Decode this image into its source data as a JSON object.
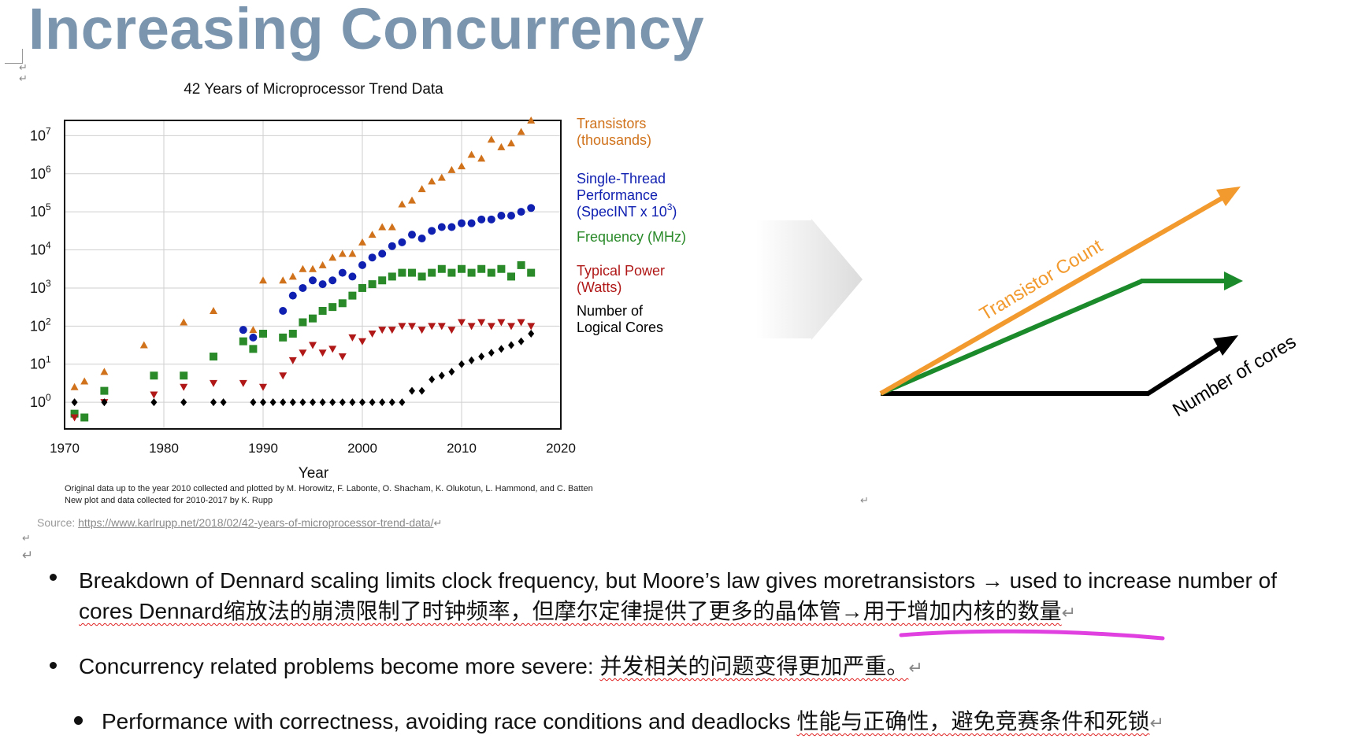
{
  "slide": {
    "title": "Increasing Concurrency",
    "para_mark": "↵"
  },
  "chart_data": {
    "type": "scatter",
    "title": "42 Years of Microprocessor Trend Data",
    "xlabel": "Year",
    "ylabel": "",
    "x_ticks": [
      "1970",
      "1980",
      "1990",
      "2000",
      "2010",
      "2020"
    ],
    "y_ticks": [
      "10^0",
      "10^1",
      "10^2",
      "10^3",
      "10^4",
      "10^5",
      "10^6",
      "10^7"
    ],
    "xlim": [
      1970,
      2020
    ],
    "ylim_log10": [
      -0.7,
      7.4
    ],
    "y_scale": "log",
    "grid": true,
    "legend_placement": "right",
    "series": [
      {
        "name": "Transistors (thousands)",
        "legend_lines": [
          "Transistors",
          "(thousands)"
        ],
        "color": "#d0721b",
        "marker": "triangle-up",
        "points": [
          [
            1971,
            0.4
          ],
          [
            1972,
            0.55
          ],
          [
            1974,
            0.8
          ],
          [
            1978,
            1.5
          ],
          [
            1982,
            2.1
          ],
          [
            1985,
            2.4
          ],
          [
            1989,
            1.9
          ],
          [
            1990,
            3.2
          ],
          [
            1992,
            3.2
          ],
          [
            1993,
            3.3
          ],
          [
            1994,
            3.5
          ],
          [
            1995,
            3.5
          ],
          [
            1996,
            3.6
          ],
          [
            1997,
            3.8
          ],
          [
            1998,
            3.9
          ],
          [
            1999,
            3.9
          ],
          [
            2000,
            4.2
          ],
          [
            2001,
            4.4
          ],
          [
            2002,
            4.6
          ],
          [
            2003,
            4.6
          ],
          [
            2004,
            5.2
          ],
          [
            2005,
            5.3
          ],
          [
            2006,
            5.6
          ],
          [
            2007,
            5.8
          ],
          [
            2008,
            5.9
          ],
          [
            2009,
            6.1
          ],
          [
            2010,
            6.2
          ],
          [
            2011,
            6.5
          ],
          [
            2012,
            6.4
          ],
          [
            2013,
            6.9
          ],
          [
            2014,
            6.7
          ],
          [
            2015,
            6.8
          ],
          [
            2016,
            7.1
          ],
          [
            2017,
            7.4
          ]
        ]
      },
      {
        "name": "Single-Thread Performance (SpecINT x 10^3)",
        "legend_lines": [
          "Single-Thread",
          "Performance",
          "(SpecINT x 10^3)"
        ],
        "color": "#1020b0",
        "marker": "circle",
        "points": [
          [
            1988,
            1.9
          ],
          [
            1989,
            1.7
          ],
          [
            1990,
            1.8
          ],
          [
            1992,
            2.4
          ],
          [
            1993,
            2.8
          ],
          [
            1994,
            3.0
          ],
          [
            1995,
            3.2
          ],
          [
            1996,
            3.1
          ],
          [
            1997,
            3.2
          ],
          [
            1998,
            3.4
          ],
          [
            1999,
            3.3
          ],
          [
            2000,
            3.6
          ],
          [
            2001,
            3.8
          ],
          [
            2002,
            3.9
          ],
          [
            2003,
            4.1
          ],
          [
            2004,
            4.2
          ],
          [
            2005,
            4.4
          ],
          [
            2006,
            4.3
          ],
          [
            2007,
            4.5
          ],
          [
            2008,
            4.6
          ],
          [
            2009,
            4.6
          ],
          [
            2010,
            4.7
          ],
          [
            2011,
            4.7
          ],
          [
            2012,
            4.8
          ],
          [
            2013,
            4.8
          ],
          [
            2014,
            4.9
          ],
          [
            2015,
            4.9
          ],
          [
            2016,
            5.0
          ],
          [
            2017,
            5.1
          ]
        ]
      },
      {
        "name": "Frequency (MHz)",
        "legend_lines": [
          "Frequency (MHz)"
        ],
        "color": "#2a8a2a",
        "marker": "square",
        "points": [
          [
            1971,
            -0.3
          ],
          [
            1972,
            -0.4
          ],
          [
            1974,
            0.3
          ],
          [
            1979,
            0.7
          ],
          [
            1982,
            0.7
          ],
          [
            1985,
            1.2
          ],
          [
            1988,
            1.6
          ],
          [
            1989,
            1.4
          ],
          [
            1990,
            1.8
          ],
          [
            1992,
            1.7
          ],
          [
            1993,
            1.8
          ],
          [
            1994,
            2.1
          ],
          [
            1995,
            2.2
          ],
          [
            1996,
            2.4
          ],
          [
            1997,
            2.5
          ],
          [
            1998,
            2.6
          ],
          [
            1999,
            2.8
          ],
          [
            2000,
            3.0
          ],
          [
            2001,
            3.1
          ],
          [
            2002,
            3.2
          ],
          [
            2003,
            3.3
          ],
          [
            2004,
            3.4
          ],
          [
            2005,
            3.4
          ],
          [
            2006,
            3.3
          ],
          [
            2007,
            3.4
          ],
          [
            2008,
            3.5
          ],
          [
            2009,
            3.4
          ],
          [
            2010,
            3.5
          ],
          [
            2011,
            3.4
          ],
          [
            2012,
            3.5
          ],
          [
            2013,
            3.4
          ],
          [
            2014,
            3.5
          ],
          [
            2015,
            3.3
          ],
          [
            2016,
            3.6
          ],
          [
            2017,
            3.4
          ]
        ]
      },
      {
        "name": "Typical Power (Watts)",
        "legend_lines": [
          "Typical Power",
          "(Watts)"
        ],
        "color": "#b01818",
        "marker": "triangle-down",
        "points": [
          [
            1971,
            -0.4
          ],
          [
            1974,
            0
          ],
          [
            1979,
            0.2
          ],
          [
            1982,
            0.4
          ],
          [
            1985,
            0.5
          ],
          [
            1988,
            0.5
          ],
          [
            1990,
            0.4
          ],
          [
            1992,
            0.7
          ],
          [
            1993,
            1.1
          ],
          [
            1994,
            1.3
          ],
          [
            1995,
            1.5
          ],
          [
            1996,
            1.3
          ],
          [
            1997,
            1.4
          ],
          [
            1998,
            1.2
          ],
          [
            1999,
            1.7
          ],
          [
            2000,
            1.6
          ],
          [
            2001,
            1.8
          ],
          [
            2002,
            1.9
          ],
          [
            2003,
            1.9
          ],
          [
            2004,
            2.0
          ],
          [
            2005,
            2.0
          ],
          [
            2006,
            1.9
          ],
          [
            2007,
            2.0
          ],
          [
            2008,
            2.0
          ],
          [
            2009,
            1.9
          ],
          [
            2010,
            2.1
          ],
          [
            2011,
            2.0
          ],
          [
            2012,
            2.1
          ],
          [
            2013,
            2.0
          ],
          [
            2014,
            2.1
          ],
          [
            2015,
            2.0
          ],
          [
            2016,
            2.1
          ],
          [
            2017,
            2.0
          ]
        ]
      },
      {
        "name": "Number of Logical Cores",
        "legend_lines": [
          "Number of",
          "Logical Cores"
        ],
        "color": "#000000",
        "marker": "diamond",
        "points": [
          [
            1971,
            0
          ],
          [
            1974,
            0
          ],
          [
            1979,
            0
          ],
          [
            1982,
            0
          ],
          [
            1985,
            0
          ],
          [
            1986,
            0
          ],
          [
            1989,
            0
          ],
          [
            1990,
            0
          ],
          [
            1991,
            0
          ],
          [
            1992,
            0
          ],
          [
            1993,
            0
          ],
          [
            1994,
            0
          ],
          [
            1995,
            0
          ],
          [
            1996,
            0
          ],
          [
            1997,
            0
          ],
          [
            1998,
            0
          ],
          [
            1999,
            0
          ],
          [
            2000,
            0
          ],
          [
            2001,
            0
          ],
          [
            2002,
            0
          ],
          [
            2003,
            0
          ],
          [
            2004,
            0
          ],
          [
            2005,
            0.3
          ],
          [
            2006,
            0.3
          ],
          [
            2007,
            0.6
          ],
          [
            2008,
            0.7
          ],
          [
            2009,
            0.8
          ],
          [
            2010,
            1.0
          ],
          [
            2011,
            1.1
          ],
          [
            2012,
            1.2
          ],
          [
            2013,
            1.3
          ],
          [
            2014,
            1.4
          ],
          [
            2015,
            1.5
          ],
          [
            2016,
            1.6
          ],
          [
            2017,
            1.8
          ]
        ]
      }
    ]
  },
  "chart_notes": {
    "credit_line_1": "Original data up to the year 2010 collected and plotted by M. Horowitz, F. Labonte, O. Shacham, K. Olukotun, L. Hammond, and C. Batten",
    "credit_line_2": "New plot and data collected for 2010-2017 by K. Rupp"
  },
  "source": {
    "prefix": "Source: ",
    "url": "https://www.karlrupp.net/2018/02/42-years-of-microprocessor-trend-data/"
  },
  "diagram": {
    "transistor_label": "Transistor Count",
    "cores_label": "Number of cores",
    "colors": {
      "transistor": "#f29a2e",
      "frequency": "#1b8a2a",
      "cores": "#000000",
      "big_arrow": "#e6e6e6"
    }
  },
  "bullets": [
    {
      "en": "Breakdown of Dennard scaling limits clock frequency, but Moore’s law gives moretransistors → used to increase number of",
      "en2": "cores",
      "zh": " Dennard缩放法的崩溃限制了时钟频率，但摩尔定律提供了更多的晶体管→用于增加内核的数量"
    },
    {
      "en": "Concurrency related problems become more severe: ",
      "zh": "并发相关的问题变得更加严重。"
    },
    {
      "en": "Performance with correctness, avoiding race conditions and deadlocks ",
      "zh": "性能与正确性，避免竞赛条件和死锁"
    }
  ],
  "highlight_color": "#e040e0"
}
